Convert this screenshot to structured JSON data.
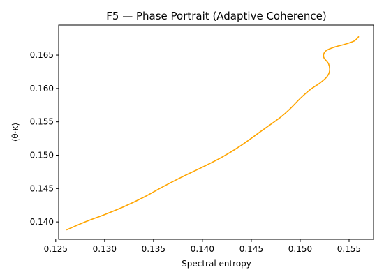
{
  "chart_data": {
    "type": "line",
    "title": "F5 — Phase Portrait (Adaptive Coherence)",
    "xlabel": "Spectral entropy",
    "ylabel": "⟨θ·κ⟩",
    "xlim": [
      0.1253,
      0.1575
    ],
    "ylim": [
      0.1374,
      0.1695
    ],
    "xticks": [
      0.125,
      0.13,
      0.135,
      0.14,
      0.145,
      0.15,
      0.155
    ],
    "xtick_labels": [
      "0.125",
      "0.130",
      "0.135",
      "0.140",
      "0.145",
      "0.150",
      "0.155"
    ],
    "yticks": [
      0.14,
      0.145,
      0.15,
      0.155,
      0.16,
      0.165
    ],
    "ytick_labels": [
      "0.140",
      "0.145",
      "0.150",
      "0.155",
      "0.160",
      "0.165"
    ],
    "grid": false,
    "series": [
      {
        "color": "#ffa500",
        "x": [
          0.1261,
          0.128,
          0.13,
          0.132,
          0.134,
          0.136,
          0.138,
          0.14,
          0.142,
          0.144,
          0.146,
          0.148,
          0.149,
          0.15,
          0.151,
          0.152,
          0.1527,
          0.153,
          0.1529,
          0.1524,
          0.1526,
          0.1535,
          0.1545,
          0.1555,
          0.156
        ],
        "y": [
          0.1388,
          0.14,
          0.1411,
          0.1423,
          0.1437,
          0.1453,
          0.1468,
          0.1482,
          0.1497,
          0.1515,
          0.1536,
          0.1557,
          0.157,
          0.1585,
          0.1598,
          0.1608,
          0.1617,
          0.1626,
          0.1637,
          0.1647,
          0.1656,
          0.1662,
          0.1666,
          0.1671,
          0.1678
        ]
      }
    ]
  }
}
